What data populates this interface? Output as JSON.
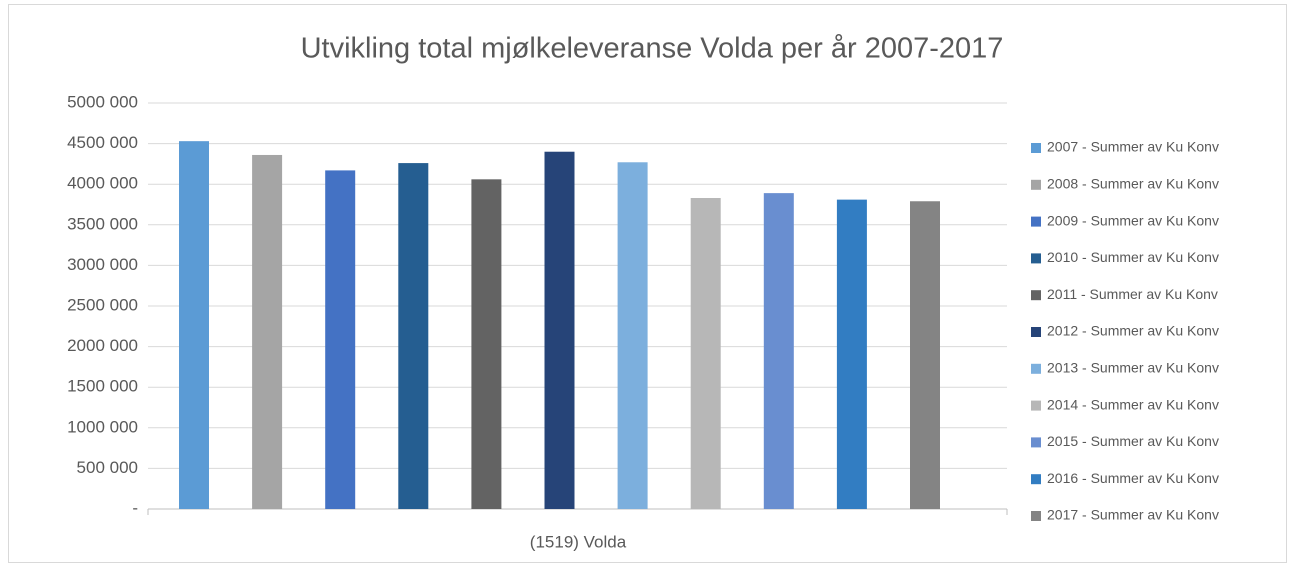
{
  "chart_data": {
    "type": "bar",
    "title": "Utvikling total mjølkeleveranse Volda per år 2007-2017",
    "categories": [
      "(1519) Volda"
    ],
    "series": [
      {
        "name": "2007 - Summer av Ku Konv",
        "color": "#5b9bd5",
        "values": [
          4530000
        ]
      },
      {
        "name": "2008 - Summer av Ku Konv",
        "color": "#a5a5a5",
        "values": [
          4360000
        ]
      },
      {
        "name": "2009 - Summer av Ku Konv",
        "color": "#4472c4",
        "values": [
          4170000
        ]
      },
      {
        "name": "2010 - Summer av Ku Konv",
        "color": "#255e91",
        "values": [
          4260000
        ]
      },
      {
        "name": "2011 - Summer av Ku Konv",
        "color": "#636363",
        "values": [
          4060000
        ]
      },
      {
        "name": "2012 - Summer av Ku Konv",
        "color": "#264478",
        "values": [
          4400000
        ]
      },
      {
        "name": "2013 - Summer av Ku Konv",
        "color": "#7cafdd",
        "values": [
          4270000
        ]
      },
      {
        "name": "2014 - Summer av Ku Konv",
        "color": "#b7b7b7",
        "values": [
          3830000
        ]
      },
      {
        "name": "2015 - Summer av Ku Konv",
        "color": "#698ed0",
        "values": [
          3890000
        ]
      },
      {
        "name": "2016 - Summer av Ku Konv",
        "color": "#327dc2",
        "values": [
          3810000
        ]
      },
      {
        "name": "2017 - Summer av Ku Konv",
        "color": "#848484",
        "values": [
          3790000
        ]
      }
    ],
    "ylim": [
      0,
      5000000
    ],
    "yticks": [
      {
        "value": 0,
        "label": "-"
      },
      {
        "value": 500000,
        "label": "500 000"
      },
      {
        "value": 1000000,
        "label": "1000 000"
      },
      {
        "value": 1500000,
        "label": "1500 000"
      },
      {
        "value": 2000000,
        "label": "2000 000"
      },
      {
        "value": 2500000,
        "label": "2500 000"
      },
      {
        "value": 3000000,
        "label": "3000 000"
      },
      {
        "value": 3500000,
        "label": "3500 000"
      },
      {
        "value": 4000000,
        "label": "4000 000"
      },
      {
        "value": 4500000,
        "label": "4500 000"
      },
      {
        "value": 5000000,
        "label": "5000 000"
      }
    ],
    "grid": true,
    "legend": "right"
  }
}
